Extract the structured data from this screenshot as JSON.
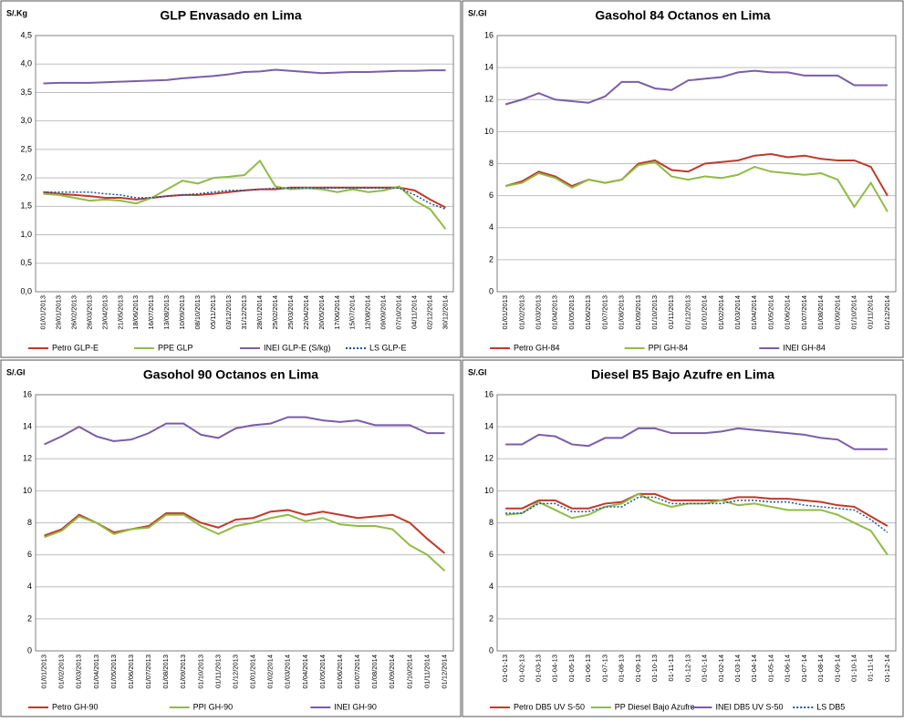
{
  "chart_data": [
    {
      "type": "line",
      "title": "GLP Envasado en Lima",
      "ylabel": "S/.Kg",
      "grid": true,
      "categories": [
        "01/01/2013",
        "29/01/2013",
        "26/02/2013",
        "26/03/2013",
        "23/04/2013",
        "21/05/2013",
        "18/06/2013",
        "16/07/2013",
        "13/08/2013",
        "10/09/2013",
        "08/10/2013",
        "05/11/2013",
        "03/12/2013",
        "31/12/2013",
        "28/01/2014",
        "25/02/2014",
        "25/03/2014",
        "22/04/2014",
        "20/05/2014",
        "17/06/2014",
        "15/07/2014",
        "12/08/2014",
        "09/09/2014",
        "07/10/2014",
        "04/11/2014",
        "02/12/2014",
        "30/12/2014"
      ],
      "ylim": [
        0,
        4.5
      ],
      "yticks": [
        {
          "value": 0,
          "label": "0,0"
        },
        {
          "value": 0.5,
          "label": "0,5"
        },
        {
          "value": 1,
          "label": "1,0"
        },
        {
          "value": 1.5,
          "label": "1,5"
        },
        {
          "value": 2,
          "label": "2,0"
        },
        {
          "value": 2.5,
          "label": "2,5"
        },
        {
          "value": 3,
          "label": "3,0"
        },
        {
          "value": 3.5,
          "label": "3,5"
        },
        {
          "value": 4,
          "label": "4,0"
        },
        {
          "value": 4.5,
          "label": "4,5"
        }
      ],
      "series": [
        {
          "name": "Petro GLP-E",
          "color": "#c0392b",
          "values": [
            1.75,
            1.72,
            1.7,
            1.68,
            1.65,
            1.65,
            1.62,
            1.65,
            1.68,
            1.7,
            1.7,
            1.72,
            1.75,
            1.78,
            1.8,
            1.8,
            1.83,
            1.83,
            1.83,
            1.83,
            1.83,
            1.83,
            1.83,
            1.83,
            1.78,
            1.62,
            1.48
          ]
        },
        {
          "name": "PPE GLP",
          "color": "#8fbc45",
          "values": [
            1.72,
            1.7,
            1.65,
            1.6,
            1.62,
            1.6,
            1.55,
            1.65,
            1.8,
            1.95,
            1.9,
            2.0,
            2.02,
            2.05,
            2.3,
            1.85,
            1.8,
            1.82,
            1.8,
            1.75,
            1.8,
            1.75,
            1.78,
            1.85,
            1.6,
            1.45,
            1.1
          ]
        },
        {
          "name": "INEI GLP-E (S/kg)",
          "color": "#7a5ea8",
          "values": [
            3.66,
            3.67,
            3.67,
            3.67,
            3.68,
            3.69,
            3.7,
            3.71,
            3.72,
            3.75,
            3.77,
            3.79,
            3.82,
            3.86,
            3.87,
            3.9,
            3.88,
            3.86,
            3.84,
            3.85,
            3.86,
            3.86,
            3.87,
            3.88,
            3.88,
            3.89,
            3.89
          ]
        },
        {
          "name": "LS GLP-E",
          "color": "#1f4e9b",
          "dashed": true,
          "values": [
            1.75,
            1.75,
            1.75,
            1.75,
            1.72,
            1.7,
            1.65,
            1.65,
            1.68,
            1.7,
            1.72,
            1.75,
            1.78,
            1.78,
            1.8,
            1.82,
            1.82,
            1.82,
            1.82,
            1.82,
            1.82,
            1.82,
            1.82,
            1.82,
            1.7,
            1.55,
            1.45
          ]
        }
      ]
    },
    {
      "type": "line",
      "title": "Gasohol 84 Octanos en Lima",
      "ylabel": "S/.Gl",
      "grid": true,
      "categories": [
        "01/01/2013",
        "01/02/2013",
        "01/03/2013",
        "01/04/2013",
        "01/05/2013",
        "01/06/2013",
        "01/07/2013",
        "01/08/2013",
        "01/09/2013",
        "01/10/2013",
        "01/11/2013",
        "01/12/2013",
        "01/01/2014",
        "01/02/2014",
        "01/03/2014",
        "01/04/2014",
        "01/05/2014",
        "01/06/2014",
        "01/07/2014",
        "01/08/2014",
        "01/09/2014",
        "01/10/2014",
        "01/11/2014",
        "01/12/2014"
      ],
      "ylim": [
        0,
        16
      ],
      "yticks": [
        0,
        2,
        4,
        6,
        8,
        10,
        12,
        14,
        16
      ],
      "series": [
        {
          "name": "Petro GH-84",
          "color": "#c0392b",
          "values": [
            6.6,
            6.9,
            7.5,
            7.2,
            6.6,
            7.0,
            6.8,
            7.0,
            8.0,
            8.2,
            7.6,
            7.5,
            8.0,
            8.1,
            8.2,
            8.5,
            8.6,
            8.4,
            8.5,
            8.3,
            8.2,
            8.2,
            7.8,
            6.0
          ]
        },
        {
          "name": "PPI GH-84",
          "color": "#8fbc45",
          "values": [
            6.6,
            6.8,
            7.4,
            7.1,
            6.5,
            7.0,
            6.8,
            7.0,
            7.9,
            8.1,
            7.2,
            7.0,
            7.2,
            7.1,
            7.3,
            7.8,
            7.5,
            7.4,
            7.3,
            7.4,
            7.0,
            5.3,
            6.8,
            5.0
          ]
        },
        {
          "name": "INEI GH-84",
          "color": "#7a5ea8",
          "values": [
            11.7,
            12.0,
            12.4,
            12.0,
            11.9,
            11.8,
            12.2,
            13.1,
            13.1,
            12.7,
            12.6,
            13.2,
            13.3,
            13.4,
            13.7,
            13.8,
            13.7,
            13.7,
            13.5,
            13.5,
            13.5,
            12.9,
            12.9,
            12.9
          ]
        }
      ]
    },
    {
      "type": "line",
      "title": "Gasohol 90 Octanos en Lima",
      "ylabel": "S/.Gl",
      "grid": true,
      "categories": [
        "01/01/2013",
        "01/02/2013",
        "01/03/2013",
        "01/04/2013",
        "01/05/2013",
        "01/06/2013",
        "01/07/2013",
        "01/08/2013",
        "01/09/2013",
        "01/10/2013",
        "01/11/2013",
        "01/12/2013",
        "01/01/2014",
        "01/02/2014",
        "01/03/2014",
        "01/04/2014",
        "01/05/2014",
        "01/06/2014",
        "01/07/2014",
        "01/08/2014",
        "01/09/2014",
        "01/10/2014",
        "01/11/2014",
        "01/12/2014"
      ],
      "ylim": [
        0,
        16
      ],
      "yticks": [
        0,
        2,
        4,
        6,
        8,
        10,
        12,
        14,
        16
      ],
      "series": [
        {
          "name": "Petro GH-90",
          "color": "#c0392b",
          "values": [
            7.2,
            7.6,
            8.5,
            8.0,
            7.4,
            7.6,
            7.8,
            8.6,
            8.6,
            8.0,
            7.7,
            8.2,
            8.3,
            8.7,
            8.8,
            8.5,
            8.7,
            8.5,
            8.3,
            8.4,
            8.5,
            8.0,
            7.0,
            6.1
          ]
        },
        {
          "name": "PPI GH-90",
          "color": "#8fbc45",
          "values": [
            7.1,
            7.5,
            8.4,
            8.0,
            7.3,
            7.6,
            7.7,
            8.5,
            8.5,
            7.8,
            7.3,
            7.8,
            8.0,
            8.3,
            8.5,
            8.1,
            8.3,
            7.9,
            7.8,
            7.8,
            7.6,
            6.6,
            6.0,
            5.0
          ]
        },
        {
          "name": "INEI GH-90",
          "color": "#7a5ea8",
          "values": [
            12.9,
            13.4,
            14.0,
            13.4,
            13.1,
            13.2,
            13.6,
            14.2,
            14.2,
            13.5,
            13.3,
            13.9,
            14.1,
            14.2,
            14.6,
            14.6,
            14.4,
            14.3,
            14.4,
            14.1,
            14.1,
            14.1,
            13.6,
            13.6
          ]
        }
      ]
    },
    {
      "type": "line",
      "title": "Diesel B5 Bajo Azufre en Lima",
      "ylabel": "S/.Gl",
      "grid": true,
      "categories": [
        "01-01-13",
        "01-02-13",
        "01-03-13",
        "01-04-13",
        "01-05-13",
        "01-06-13",
        "01-07-13",
        "01-08-13",
        "01-09-13",
        "01-10-13",
        "01-11-13",
        "01-12-13",
        "01-01-14",
        "01-02-14",
        "01-03-14",
        "01-04-14",
        "01-05-14",
        "01-06-14",
        "01-07-14",
        "01-08-14",
        "01-09-14",
        "01-10-14",
        "01-11-14",
        "01-12-14"
      ],
      "ylim": [
        0,
        16
      ],
      "yticks": [
        0,
        2,
        4,
        6,
        8,
        10,
        12,
        14,
        16
      ],
      "series": [
        {
          "name": "Petro DB5 UV S-50",
          "color": "#c0392b",
          "values": [
            8.9,
            8.9,
            9.4,
            9.4,
            8.9,
            8.9,
            9.2,
            9.3,
            9.8,
            9.8,
            9.4,
            9.4,
            9.4,
            9.4,
            9.6,
            9.6,
            9.5,
            9.5,
            9.4,
            9.3,
            9.1,
            9.0,
            8.4,
            7.8
          ]
        },
        {
          "name": "PP Diesel Bajo Azufre",
          "color": "#8fbc45",
          "values": [
            8.5,
            8.6,
            9.3,
            8.8,
            8.3,
            8.5,
            9.0,
            9.2,
            9.8,
            9.3,
            9.0,
            9.2,
            9.2,
            9.4,
            9.1,
            9.2,
            9.0,
            8.8,
            8.8,
            8.8,
            8.5,
            8.0,
            7.5,
            6.0
          ]
        },
        {
          "name": "INEI DB5 UV S-50",
          "color": "#7a5ea8",
          "values": [
            12.9,
            12.9,
            13.5,
            13.4,
            12.9,
            12.8,
            13.3,
            13.3,
            13.9,
            13.9,
            13.6,
            13.6,
            13.6,
            13.7,
            13.9,
            13.8,
            13.7,
            13.6,
            13.5,
            13.3,
            13.2,
            12.6,
            12.6,
            12.6
          ]
        },
        {
          "name": "LS DB5",
          "color": "#1f4e9b",
          "dashed": true,
          "values": [
            8.6,
            8.6,
            9.2,
            9.2,
            8.7,
            8.7,
            9.0,
            9.0,
            9.6,
            9.6,
            9.2,
            9.2,
            9.2,
            9.2,
            9.4,
            9.4,
            9.3,
            9.3,
            9.1,
            9.0,
            8.9,
            8.8,
            8.2,
            7.4
          ]
        }
      ]
    }
  ]
}
